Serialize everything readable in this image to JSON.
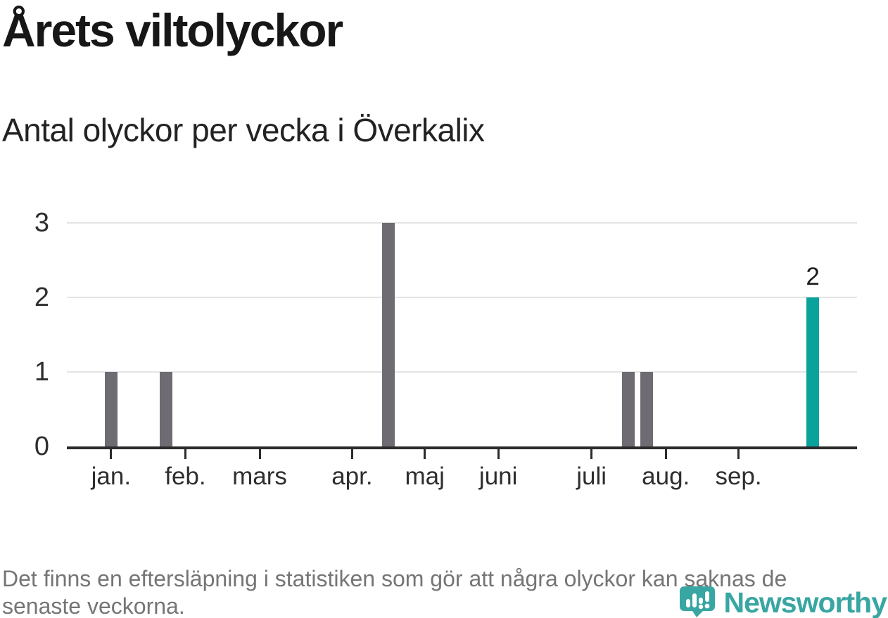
{
  "header": {
    "title": "Årets viltolyckor",
    "subtitle": "Antal olyckor per vecka i Överkalix"
  },
  "chart_data": {
    "type": "bar",
    "title": "Årets viltolyckor",
    "subtitle": "Antal olyckor per vecka i Överkalix",
    "xlabel": "",
    "ylabel": "",
    "ylim": [
      0,
      3
    ],
    "yticks": [
      "0",
      "1",
      "2",
      "3"
    ],
    "grid": "horizontal",
    "legend": "none",
    "month_ticks": [
      {
        "label": "jan.",
        "x_pct": 5.6
      },
      {
        "label": "feb.",
        "x_pct": 15.0
      },
      {
        "label": "mars",
        "x_pct": 24.4
      },
      {
        "label": "apr.",
        "x_pct": 36.1
      },
      {
        "label": "maj",
        "x_pct": 45.3
      },
      {
        "label": "juni",
        "x_pct": 54.6
      },
      {
        "label": "juli",
        "x_pct": 66.4
      },
      {
        "label": "aug.",
        "x_pct": 75.8
      },
      {
        "label": "sep.",
        "x_pct": 85.0
      }
    ],
    "bars": [
      {
        "period": "mitten av januari",
        "value": 1,
        "x_pct": 5.6,
        "highlight": false
      },
      {
        "period": "början av februari",
        "value": 1,
        "x_pct": 12.6,
        "highlight": false
      },
      {
        "period": "slutet av april",
        "value": 3,
        "x_pct": 40.7,
        "highlight": false
      },
      {
        "period": "slutet av juli",
        "value": 1,
        "x_pct": 71.1,
        "highlight": false
      },
      {
        "period": "början av augusti",
        "value": 1,
        "x_pct": 73.4,
        "highlight": false
      },
      {
        "period": "senaste veckan (oktober)",
        "value": 2,
        "x_pct": 94.4,
        "highlight": true,
        "label": "2"
      }
    ],
    "colors": {
      "bar": "#6e6c72",
      "highlight": "#0aa39c",
      "gridline": "#e4e4e4",
      "axis": "#2b2b2b"
    }
  },
  "footnote": {
    "line1": "Det finns en eftersläpning i statistiken som gör att några olyckor kan saknas de",
    "line2": "senaste veckorna."
  },
  "logo": {
    "text": "Newsworthy",
    "color": "#38a6a2",
    "icon": "newsworthy-bubble-chart-icon"
  }
}
